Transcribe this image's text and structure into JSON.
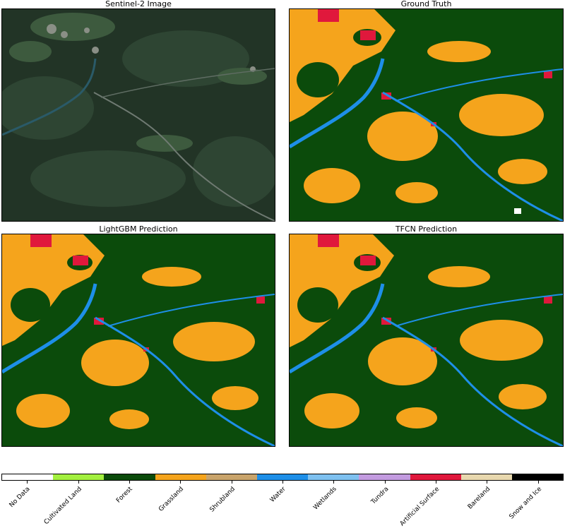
{
  "panels": [
    {
      "key": "sentinel",
      "title": "Sentinel-2 Image"
    },
    {
      "key": "truth",
      "title": "Ground Truth"
    },
    {
      "key": "lgbm",
      "title": "LightGBM Prediction"
    },
    {
      "key": "tfcn",
      "title": "TFCN Prediction"
    }
  ],
  "legend": [
    {
      "label": "No Data",
      "color": "#ffffff"
    },
    {
      "label": "Cultivated Land",
      "color": "#a3f03f"
    },
    {
      "label": "Forest",
      "color": "#0b4b0b"
    },
    {
      "label": "Grassland",
      "color": "#f5a41c"
    },
    {
      "label": "Shrubland",
      "color": "#c9a46b"
    },
    {
      "label": "Water",
      "color": "#1e8fe8"
    },
    {
      "label": "Wetlands",
      "color": "#7ec1f0"
    },
    {
      "label": "Tundra",
      "color": "#c39be0"
    },
    {
      "label": "Artificial Surface",
      "color": "#e0183c"
    },
    {
      "label": "Bareland",
      "color": "#e8d8ae"
    },
    {
      "label": "Snow and Ice",
      "color": "#000000"
    }
  ]
}
